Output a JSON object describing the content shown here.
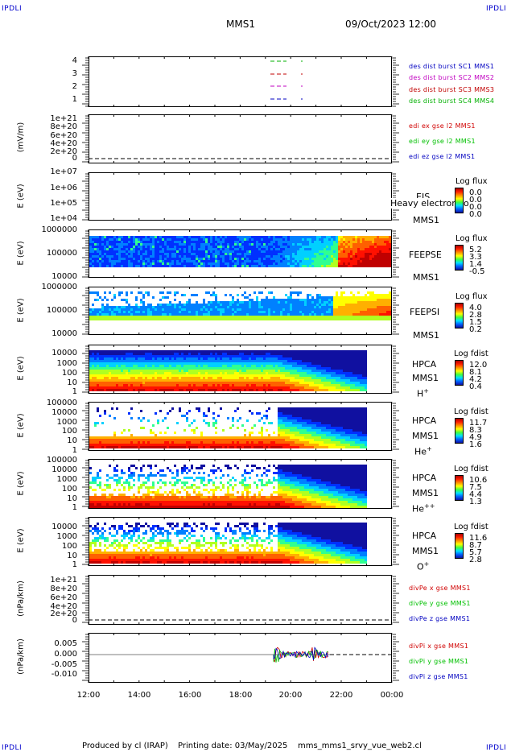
{
  "header": {
    "corner_label": "IPDLI",
    "mission": "MMS1",
    "datetime": "09/Oct/2023 12:00"
  },
  "footer": {
    "produced_by": "Produced by cl (IRAP)",
    "printing_date": "Printing date: 03/May/2025",
    "script_name": "mms_mms1_srvy_vue_web2.cl"
  },
  "colors": {
    "mms1": "#0000c0",
    "mms2": "#c000c0",
    "mms3": "#c00000",
    "mms4": "#00b000",
    "x_comp": "#d00000",
    "y_comp": "#00c000",
    "z_comp": "#0000c0"
  },
  "chart_data": [
    {
      "type": "line",
      "panel": "burst-intervals",
      "yticks": [
        "4",
        "3",
        "2",
        "1"
      ],
      "series": [
        {
          "name": "des dist burst SC1 MMS1",
          "color": "#0000c0"
        },
        {
          "name": "des dist burst SC2 MMS2",
          "color": "#c000c0"
        },
        {
          "name": "des dist burst SC3 MMS3",
          "color": "#c00000"
        },
        {
          "name": "des dist burst SC4 MMS4",
          "color": "#00b000"
        }
      ]
    },
    {
      "type": "line",
      "panel": "electric-field",
      "ylabel": "(mV/m)",
      "yticks": [
        "1e+21",
        "8e+20",
        "6e+20",
        "4e+20",
        "2e+20",
        "0"
      ],
      "series": [
        {
          "name": "edi ex gse l2 MMS1",
          "color": "#d00000"
        },
        {
          "name": "edi ey gse l2 MMS1",
          "color": "#00c000"
        },
        {
          "name": "edi ez gse l2 MMS1",
          "color": "#0000c0"
        }
      ]
    },
    {
      "type": "heatmap",
      "panel": "eis",
      "ylabel": "E (eV)",
      "yticks": [
        "1e+07",
        "1e+06",
        "1e+05",
        "1e+04"
      ],
      "instrument": [
        "EIS",
        "MMS1"
      ],
      "overlay_text": "Heavy electron to",
      "colorbar": {
        "title": "Log flux",
        "values": [
          "0.0",
          "0.0",
          "0.0",
          "0.0"
        ]
      }
    },
    {
      "type": "heatmap",
      "panel": "feepse",
      "ylabel": "E (eV)",
      "yticks": [
        "1000000",
        "100000",
        "10000"
      ],
      "instrument": [
        "FEEPSE",
        "MMS1"
      ],
      "colorbar": {
        "title": "Log flux",
        "values": [
          "5.2",
          "3.3",
          "1.4",
          "-0.5"
        ]
      }
    },
    {
      "type": "heatmap",
      "panel": "feepsi",
      "ylabel": "E (eV)",
      "yticks": [
        "1000000",
        "100000",
        "10000"
      ],
      "instrument": [
        "FEEPSI",
        "MMS1"
      ],
      "colorbar": {
        "title": "Log flux",
        "values": [
          "4.0",
          "2.8",
          "1.5",
          "0.2"
        ]
      }
    },
    {
      "type": "heatmap",
      "panel": "hpca-h",
      "ylabel": "E (eV)",
      "yticks": [
        "10000",
        "1000",
        "100",
        "10",
        "1"
      ],
      "instrument": [
        "HPCA",
        "MMS1"
      ],
      "species": "H",
      "species_charge": "+",
      "colorbar": {
        "title": "Log fdist",
        "values": [
          "12.0",
          "8.1",
          "4.2",
          "0.4"
        ]
      }
    },
    {
      "type": "heatmap",
      "panel": "hpca-he1",
      "ylabel": "E (eV)",
      "yticks": [
        "100000",
        "10000",
        "1000",
        "100",
        "10",
        "1"
      ],
      "instrument": [
        "HPCA",
        "MMS1"
      ],
      "species": "He",
      "species_charge": "+",
      "colorbar": {
        "title": "Log fdist",
        "values": [
          "11.7",
          "8.3",
          "4.9",
          "1.6"
        ]
      }
    },
    {
      "type": "heatmap",
      "panel": "hpca-he2",
      "ylabel": "E (eV)",
      "yticks": [
        "100000",
        "10000",
        "1000",
        "100",
        "10",
        "1"
      ],
      "instrument": [
        "HPCA",
        "MMS1"
      ],
      "species": "He",
      "species_charge": "++",
      "colorbar": {
        "title": "Log fdist",
        "values": [
          "10.6",
          "7.5",
          "4.4",
          "1.3"
        ]
      }
    },
    {
      "type": "heatmap",
      "panel": "hpca-o",
      "ylabel": "E (eV)",
      "yticks": [
        "10000",
        "1000",
        "100",
        "10",
        "1"
      ],
      "instrument": [
        "HPCA",
        "MMS1"
      ],
      "species": "O",
      "species_charge": "+",
      "colorbar": {
        "title": "Log fdist",
        "values": [
          "11.6",
          "8.7",
          "5.7",
          "2.8"
        ]
      }
    },
    {
      "type": "line",
      "panel": "divpe",
      "ylabel": "(nPa/km)",
      "yticks": [
        "1e+21",
        "8e+20",
        "6e+20",
        "4e+20",
        "2e+20",
        "0"
      ],
      "series": [
        {
          "name": "divPe x gse MMS1",
          "color": "#d00000"
        },
        {
          "name": "divPe y gse MMS1",
          "color": "#00c000"
        },
        {
          "name": "divPe z gse MMS1",
          "color": "#0000c0"
        }
      ]
    },
    {
      "type": "line",
      "panel": "divpi",
      "ylabel": "(nPa/km)",
      "yticks": [
        "0.005",
        "0.000",
        "-0.005",
        "-0.010"
      ],
      "series": [
        {
          "name": "divPi x gse MMS1",
          "color": "#d00000"
        },
        {
          "name": "divPi y gse MMS1",
          "color": "#00c000"
        },
        {
          "name": "divPi z gse MMS1",
          "color": "#0000c0"
        }
      ]
    }
  ],
  "xaxis": {
    "ticks": [
      "12:00",
      "14:00",
      "16:00",
      "18:00",
      "20:00",
      "22:00",
      "00:00"
    ]
  }
}
